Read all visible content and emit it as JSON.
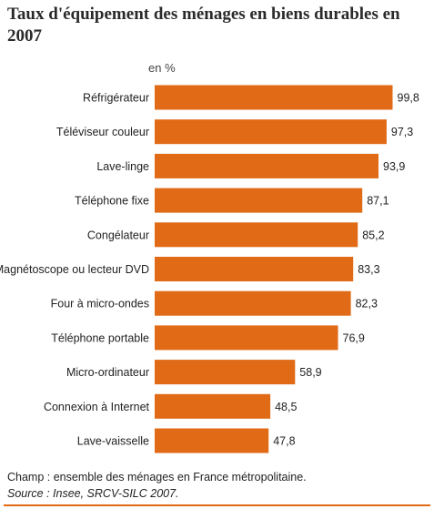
{
  "title": "Taux d'équipement des ménages en biens durables en 2007",
  "colors": {
    "bar": "#e06a16"
  },
  "chart_data": {
    "type": "bar",
    "orientation": "horizontal",
    "unit_label": "en %",
    "categories": [
      "Réfrigérateur",
      "Téléviseur couleur",
      "Lave-linge",
      "Téléphone fixe",
      "Congélateur",
      "Magnétoscope ou lecteur DVD",
      "Four à micro-ondes",
      "Téléphone portable",
      "Micro-ordinateur",
      "Connexion à Internet",
      "Lave-vaisselle"
    ],
    "values": [
      99.8,
      97.3,
      93.9,
      87.1,
      85.2,
      83.3,
      82.3,
      76.9,
      58.9,
      48.5,
      47.8
    ],
    "value_labels": [
      "99,8",
      "97,3",
      "93,9",
      "87,1",
      "85,2",
      "83,3",
      "82,3",
      "76,9",
      "58,9",
      "48,5",
      "47,8"
    ],
    "xlim": [
      0,
      100
    ],
    "grid": false,
    "legend": "none"
  },
  "footnote": {
    "champ": "Champ :  ensemble des ménages en France métropolitaine.",
    "source": "Source : Insee, SRCV-SILC 2007."
  }
}
